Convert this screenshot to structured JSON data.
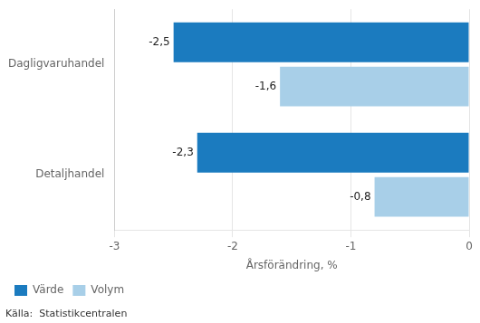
{
  "chart_data": {
    "type": "bar",
    "orientation": "horizontal",
    "categories": [
      "Dagligvaruhandel",
      "Detaljhandel"
    ],
    "series": [
      {
        "name": "Värde",
        "color": "#1b7bbf",
        "values": [
          -2.5,
          -2.3
        ],
        "value_labels": [
          "-2,5",
          "-2,3"
        ]
      },
      {
        "name": "Volym",
        "color": "#a8cfe8",
        "values": [
          -1.6,
          -0.8
        ],
        "value_labels": [
          "-1,6",
          "-0,8"
        ]
      }
    ],
    "xlabel": "Årsförändring, %",
    "xlim": [
      -3,
      0
    ],
    "xticks": [
      -3,
      -2,
      -1,
      0
    ],
    "grid": true,
    "legend": "lower left",
    "data_labels": true,
    "source": "Källa:  Statistikcentralen"
  }
}
